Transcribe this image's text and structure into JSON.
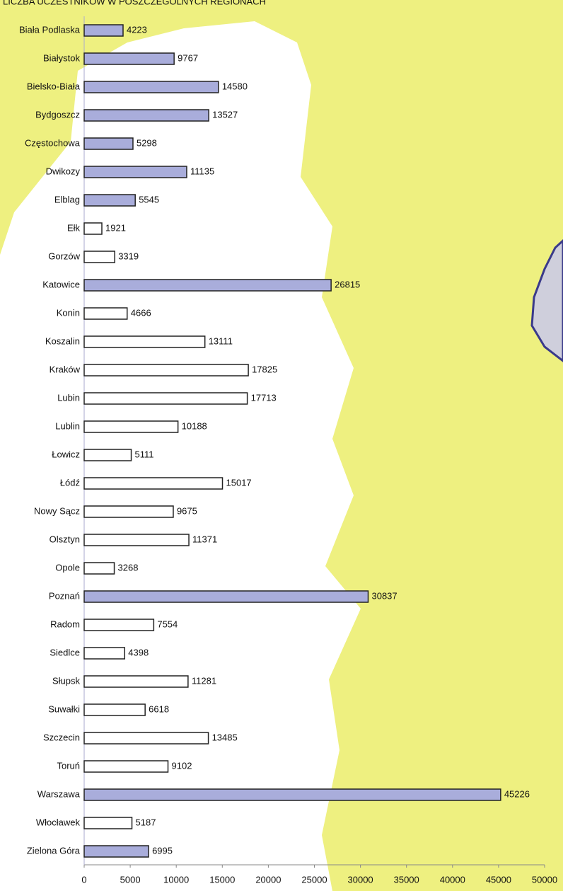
{
  "chart_data": {
    "type": "barh",
    "title": "LICZBA UCZESTNIKÓW W POSZCZEGÓLNYCH REGIONACH",
    "categories": [
      "Biała Podlaska",
      "Białystok",
      "Bielsko-Biała",
      "Bydgoszcz",
      "Częstochowa",
      "Dwikozy",
      "Elblag",
      "Ełk",
      "Gorzów",
      "Katowice",
      "Konin",
      "Koszalin",
      "Kraków",
      "Lubin",
      "Lublin",
      "Łowicz",
      "Łódź",
      "Nowy Sącz",
      "Olsztyn",
      "Opole",
      "Poznań",
      "Radom",
      "Siedlce",
      "Słupsk",
      "Suwałki",
      "Szczecin",
      "Toruń",
      "Warszawa",
      "Włocławek",
      "Zielona Góra"
    ],
    "values": [
      4223,
      9767,
      14580,
      13527,
      5298,
      11135,
      5545,
      1921,
      3319,
      26815,
      4666,
      13111,
      17825,
      17713,
      10188,
      5111,
      15017,
      9675,
      11371,
      3268,
      30837,
      7554,
      4398,
      11281,
      6618,
      13485,
      9102,
      45226,
      5187,
      6995
    ],
    "colors": [
      "#a9addb",
      "#a9addb",
      "#a9addb",
      "#a9addb",
      "#a9addb",
      "#a9addb",
      "#a9addb",
      "#ffffff",
      "#ffffff",
      "#a9addb",
      "#ffffff",
      "#ffffff",
      "#ffffff",
      "#ffffff",
      "#ffffff",
      "#ffffff",
      "#ffffff",
      "#ffffff",
      "#ffffff",
      "#ffffff",
      "#a9addb",
      "#ffffff",
      "#ffffff",
      "#ffffff",
      "#ffffff",
      "#ffffff",
      "#ffffff",
      "#a9addb",
      "#ffffff",
      "#a9addb"
    ],
    "xlim": [
      0,
      50000
    ],
    "xticks": [
      0,
      5000,
      10000,
      15000,
      20000,
      25000,
      30000,
      35000,
      40000,
      45000,
      50000
    ],
    "grid": false
  }
}
